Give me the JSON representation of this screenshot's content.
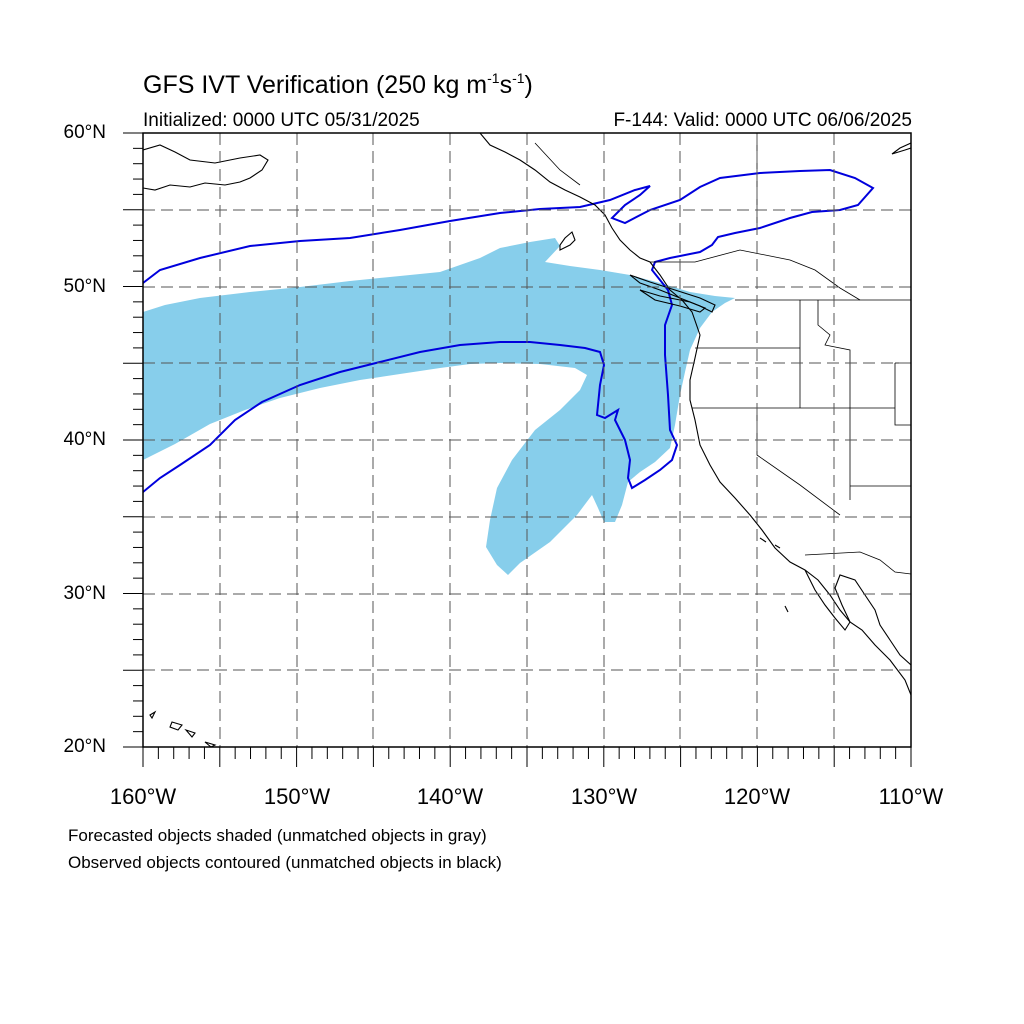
{
  "title": {
    "main": "GFS IVT Verification (250 kg m",
    "sup1": "-1",
    "mid": "s",
    "sup2": "-1",
    "end": ")"
  },
  "subtitle": {
    "initialized": "Initialized: 0000 UTC 05/31/2025",
    "valid": "F-144: Valid: 0000 UTC 06/06/2025"
  },
  "axes": {
    "lat_labels": [
      "60°N",
      "50°N",
      "40°N",
      "30°N",
      "20°N"
    ],
    "lon_labels": [
      "160°W",
      "150°W",
      "140°W",
      "130°W",
      "120°W",
      "110°W"
    ],
    "lat_range": [
      20,
      60
    ],
    "lon_range": [
      -160,
      -110
    ],
    "grid_step_deg": 5,
    "grid": "dashed"
  },
  "legend": {
    "line1": "Forecasted objects shaded (unmatched objects in gray)",
    "line2": "Observed objects contoured (unmatched objects in black)"
  },
  "colors": {
    "forecast_fill": "#87ceeb",
    "observed_contour": "#0000dd",
    "coastline": "#000000",
    "grid": "#555555"
  }
}
